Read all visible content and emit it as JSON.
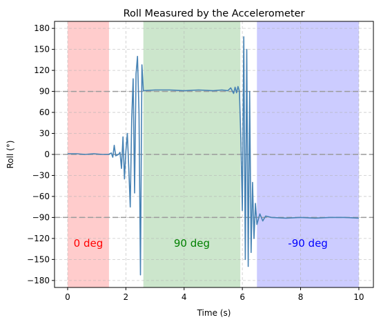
{
  "chart_data": {
    "type": "line",
    "title": "Roll Measured by the Accelerometer",
    "xlabel": "Time (s)",
    "ylabel": "Roll (°)",
    "xlim": [
      -0.45,
      10.5
    ],
    "ylim": [
      -190,
      190
    ],
    "xticks": [
      0,
      2,
      4,
      6,
      8,
      10
    ],
    "yticks": [
      180,
      150,
      120,
      90,
      60,
      30,
      0,
      -30,
      -60,
      -90,
      -120,
      -150,
      -180
    ],
    "xtick_labels": [
      "0",
      "2",
      "4",
      "6",
      "8",
      "10"
    ],
    "ytick_labels": [
      "180",
      "150",
      "120",
      "90",
      "60",
      "30",
      "0",
      "−30",
      "−60",
      "−90",
      "−120",
      "−150",
      "−180"
    ],
    "grid": true,
    "reference_lines": [
      90,
      0,
      -90
    ],
    "regions": [
      {
        "label": "0 deg",
        "x_start": 0.0,
        "x_end": 1.42,
        "color": "#ff0000",
        "label_color": "#ff0000"
      },
      {
        "label": "90 deg",
        "x_start": 2.6,
        "x_end": 5.93,
        "color": "#008000",
        "label_color": "#008000"
      },
      {
        "label": "-90 deg",
        "x_start": 6.5,
        "x_end": 10.0,
        "color": "#0000ff",
        "label_color": "#0000ff"
      }
    ],
    "region_label_y": -127,
    "series": [
      {
        "color": "#4682b4",
        "x": [
          0.0,
          0.3,
          0.6,
          0.9,
          1.2,
          1.4,
          1.5,
          1.55,
          1.6,
          1.65,
          1.75,
          1.8,
          1.85,
          1.9,
          1.95,
          2.0,
          2.05,
          2.1,
          2.15,
          2.2,
          2.25,
          2.3,
          2.35,
          2.4,
          2.45,
          2.5,
          2.55,
          2.6,
          3.0,
          3.5,
          4.0,
          4.5,
          5.0,
          5.3,
          5.5,
          5.6,
          5.7,
          5.75,
          5.8,
          5.85,
          5.9,
          5.95,
          6.0,
          6.05,
          6.1,
          6.15,
          6.2,
          6.25,
          6.3,
          6.35,
          6.4,
          6.45,
          6.5,
          6.6,
          6.7,
          6.8,
          7.0,
          7.5,
          8.0,
          8.5,
          9.0,
          9.5,
          10.0
        ],
        "y": [
          1,
          1,
          0,
          1,
          0,
          0,
          2,
          -4,
          13,
          -2,
          0,
          3,
          -20,
          25,
          -35,
          5,
          30,
          -20,
          -75,
          50,
          108,
          -55,
          115,
          140,
          60,
          -172,
          128,
          91,
          92,
          92,
          91,
          92,
          91,
          92,
          91,
          95,
          87,
          96,
          88,
          97,
          90,
          20,
          -80,
          168,
          -150,
          150,
          -160,
          90,
          -140,
          -40,
          -120,
          -70,
          -100,
          -85,
          -95,
          -88,
          -90,
          -91,
          -90,
          -91,
          -90,
          -90,
          -91
        ]
      }
    ]
  }
}
